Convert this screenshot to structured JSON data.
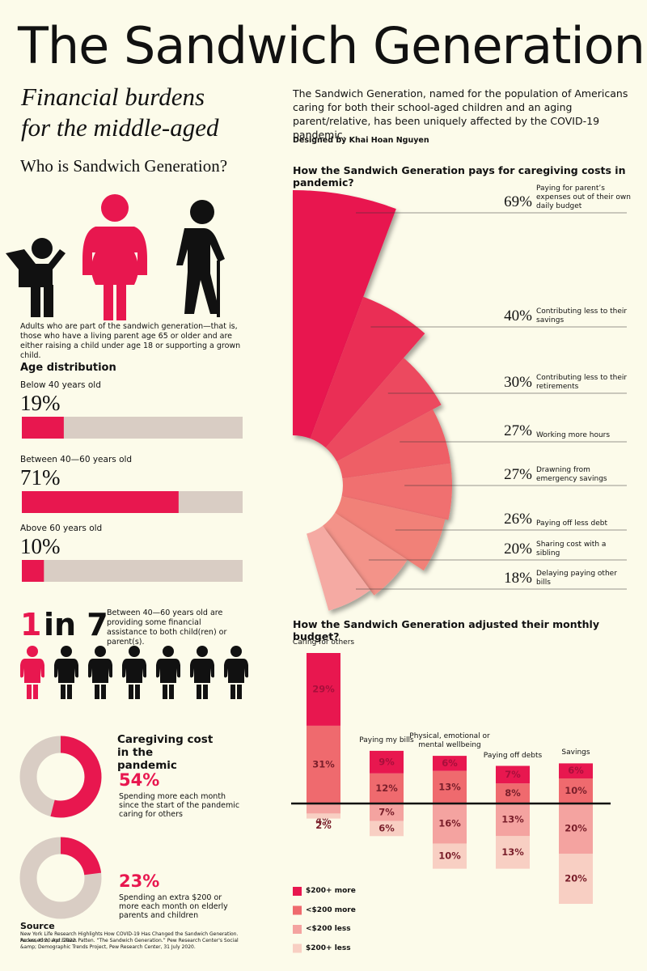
{
  "header": {
    "title": "The Sandwich Generation",
    "subtitle": [
      "Financial burdens",
      "for the middle-aged"
    ],
    "intro": "The Sandwich Generation, named for the population of Americans caring for both their school-aged children and an aging parent/relative, has been uniquely affected by the COVID-19 pandemic.",
    "credit": "Designed by Khai Hoan Nguyen"
  },
  "who": {
    "heading": "Who is Sandwich Generation?",
    "description": "Adults who are part of the sandwich generation—that is, those who have a living parent age 65 or older and are either raising a child under age 18 or supporting a grown child."
  },
  "one_in_seven": {
    "number": "1",
    "rest": "in 7",
    "description": "Between 40—60 years old are providing some financial assistance to both child(ren) or parent(s)."
  },
  "caregiving": {
    "title": "Caregiving cost in the pandemic"
  },
  "source": {
    "heading": "Source",
    "items": [
      "New York Life Research Highlights How COVID-19 Has Changed the Sandwich Generation. Accessed 20 Apr. 2022.",
      "Parker, Kim, and Eileen Patten. “The Sandwich Generation.” Pew Research Center's Social &amp; Demographic Trends Project, Pew Research Center, 31 July 2020."
    ]
  },
  "chart_data": [
    {
      "type": "bar",
      "orientation": "horizontal",
      "title": "Age distribution",
      "categories": [
        "Below 40 years old",
        "Between 40—60 years old",
        "Above 60 years old"
      ],
      "values": [
        19,
        71,
        10
      ],
      "value_labels": [
        "19%",
        "71%",
        "10%"
      ],
      "xlim": [
        0,
        100
      ],
      "color": "#e8174f",
      "track_color": "#d9cdc4"
    },
    {
      "type": "donut",
      "values": [
        54
      ],
      "value_labels": [
        "54%"
      ],
      "description": "Spending more each month since the start of the pandemic caring for others",
      "color": "#e8174f",
      "track_color": "#d9cdc4"
    },
    {
      "type": "donut",
      "values": [
        23
      ],
      "value_labels": [
        "23%"
      ],
      "description": "Spending an extra $200 or more each month on elderly parents and children",
      "color": "#e8174f",
      "track_color": "#d9cdc4"
    },
    {
      "type": "radial_bar",
      "title": "How the Sandwich Generation pays for caregiving costs in pandemic?",
      "categories": [
        "Paying for parent’s expenses out of their own daily budget",
        "Contributing less to their savings",
        "Contributing less to their retirements",
        "Working more hours",
        "Drawning from emergency savings",
        "Paying off less debt",
        "Sharing cost with a sibling",
        "Delaying paying other bills"
      ],
      "values": [
        69,
        40,
        30,
        27,
        27,
        26,
        20,
        18
      ],
      "value_labels": [
        "69%",
        "40%",
        "30%",
        "27%",
        "27%",
        "26%",
        "20%",
        "18%"
      ],
      "colors": [
        "#e8174f",
        "#ea2f55",
        "#ec4a5e",
        "#ee5e66",
        "#f0706f",
        "#f18178",
        "#f39389",
        "#f5aaa3"
      ]
    },
    {
      "type": "stacked_bar",
      "title": "How the Sandwich Generation adjusted their monthly budget?",
      "categories": [
        "Caring for others",
        "Paying my bills",
        "Physical, emotional or mental wellbeing",
        "Paying off debts",
        "Savings"
      ],
      "series": [
        {
          "name": "$200+ more",
          "color": "#e8174f",
          "stack": "above",
          "values": [
            29,
            9,
            6,
            7,
            6
          ],
          "value_labels": [
            "29%",
            "9%",
            "6%",
            "7%",
            "6%"
          ]
        },
        {
          "name": "<$200 more",
          "color": "#ef6a6e",
          "stack": "above",
          "values": [
            31,
            12,
            13,
            8,
            10
          ],
          "value_labels": [
            "31%",
            "12%",
            "13%",
            "8%",
            "10%"
          ]
        },
        {
          "name": "<$200 less",
          "color": "#f4a3a0",
          "stack": "below",
          "values": [
            4,
            7,
            16,
            13,
            20
          ],
          "value_labels": [
            "4%",
            "7%",
            "16%",
            "13%",
            "20%"
          ]
        },
        {
          "name": "$200+ less",
          "color": "#f8cfc3",
          "stack": "below",
          "values": [
            2,
            6,
            10,
            13,
            20
          ],
          "value_labels": [
            "2%",
            "6%",
            "10%",
            "13%",
            "20%"
          ]
        }
      ]
    }
  ]
}
